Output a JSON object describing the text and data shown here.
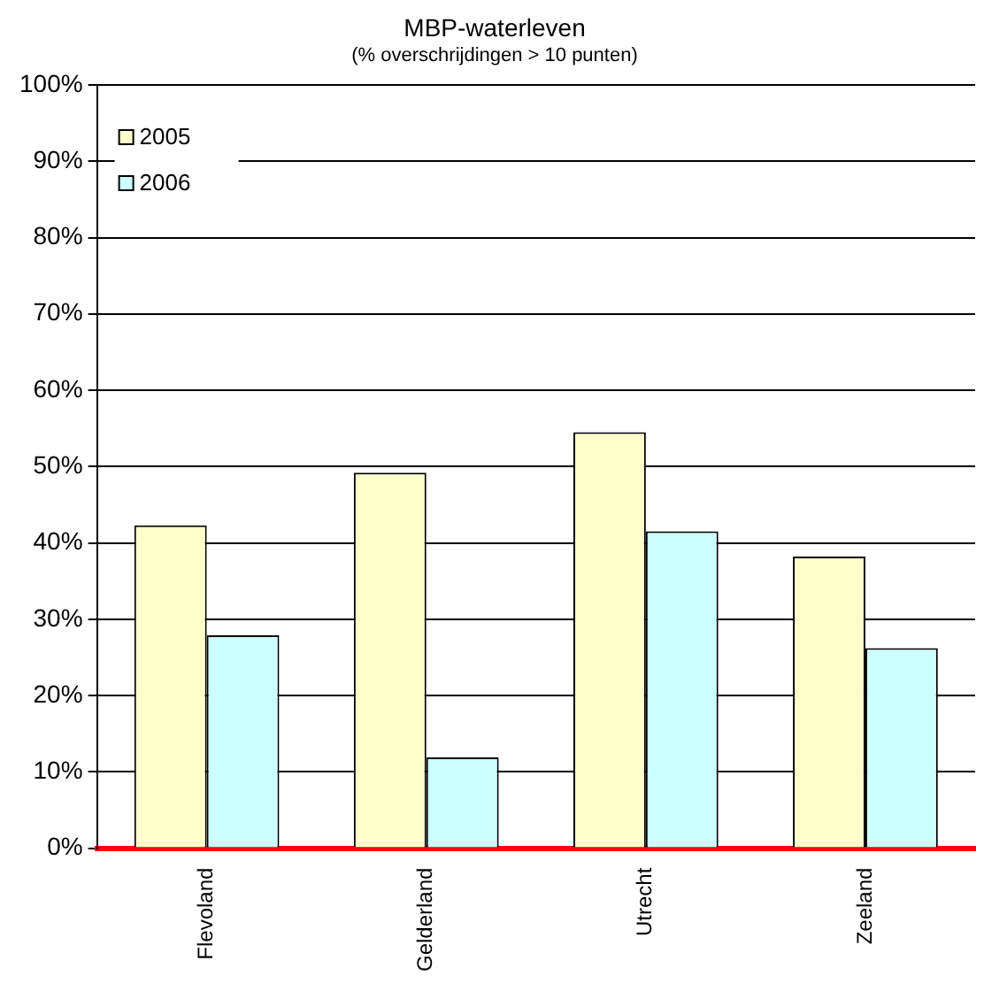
{
  "chart_data": {
    "type": "bar",
    "title": "MBP-waterleven",
    "subtitle": "(% overschrijdingen > 10 punten)",
    "categories": [
      "Flevoland",
      "Gelderland",
      "Utrecht",
      "Zeeland"
    ],
    "series": [
      {
        "name": "2005",
        "color": "#ffffcc",
        "values": [
          42.3,
          49.2,
          54.5,
          38.2
        ]
      },
      {
        "name": "2006",
        "color": "#ccffff",
        "values": [
          27.9,
          11.9,
          41.5,
          26.2
        ]
      }
    ],
    "ylim": [
      0,
      100
    ],
    "yticks": [
      {
        "value": 0,
        "label": "0%"
      },
      {
        "value": 10,
        "label": "10%"
      },
      {
        "value": 20,
        "label": "20%"
      },
      {
        "value": 30,
        "label": "30%"
      },
      {
        "value": 40,
        "label": "40%"
      },
      {
        "value": 50,
        "label": "50%"
      },
      {
        "value": 60,
        "label": "60%"
      },
      {
        "value": 70,
        "label": "70%"
      },
      {
        "value": 80,
        "label": "80%"
      },
      {
        "value": 90,
        "label": "90%"
      },
      {
        "value": 100,
        "label": "100%"
      }
    ],
    "grid": "y",
    "legend": "top left"
  }
}
